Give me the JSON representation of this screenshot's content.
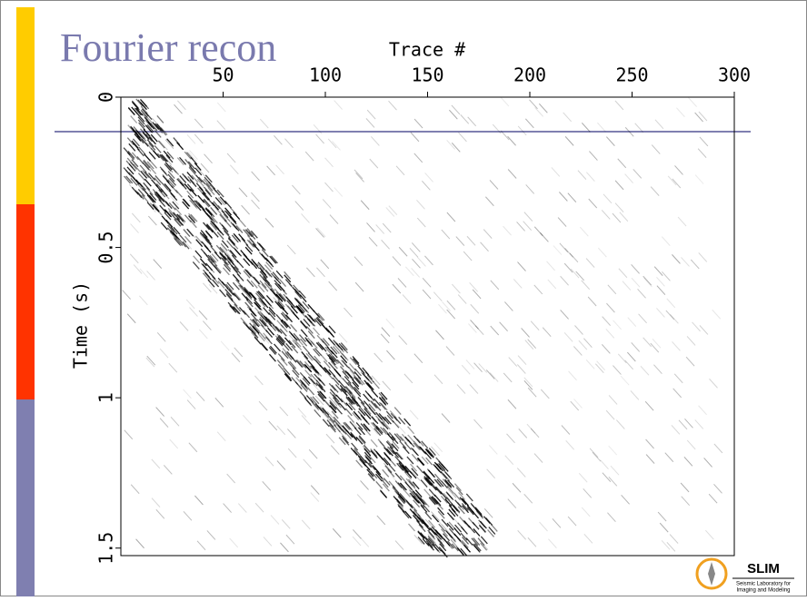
{
  "slide": {
    "title": "Fourier recon"
  },
  "plot": {
    "x_label": "Trace #",
    "y_label": "Time (s)",
    "xlim": [
      0,
      300
    ],
    "xticks": [
      50,
      100,
      150,
      200,
      250,
      300
    ],
    "ylim": [
      0,
      1.525
    ],
    "yticks": [
      0,
      0.5,
      1,
      1.5
    ]
  },
  "logo": {
    "name": "SLIM",
    "line1": "Seismic Laboratory for",
    "line2": "Imaging and Modeling"
  }
}
